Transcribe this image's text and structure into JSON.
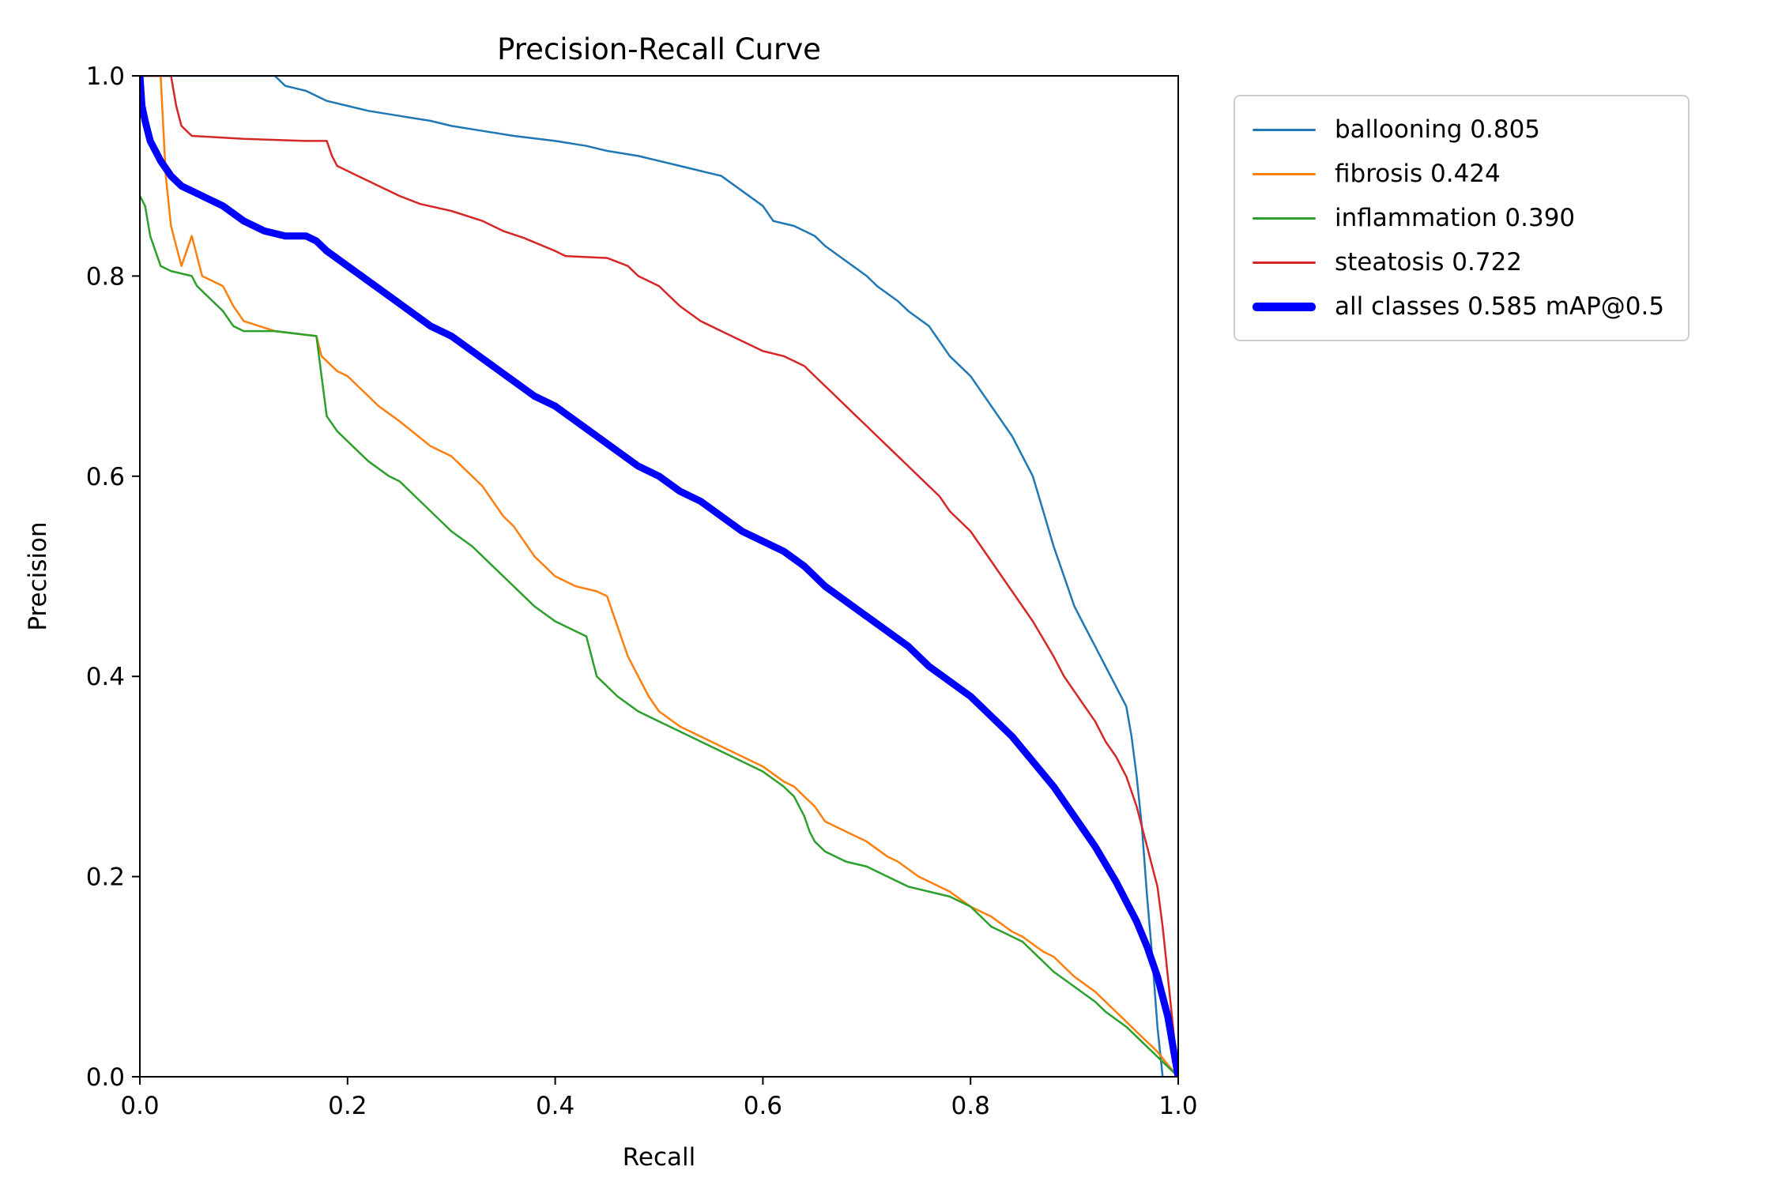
{
  "title": "Precision-Recall Curve",
  "axes": {
    "xlabel": "Recall",
    "ylabel": "Precision",
    "xticks": [
      "0.0",
      "0.2",
      "0.4",
      "0.6",
      "0.8",
      "1.0"
    ],
    "yticks": [
      "0.0",
      "0.2",
      "0.4",
      "0.6",
      "0.8",
      "1.0"
    ]
  },
  "legend": {
    "items": [
      {
        "label": "ballooning 0.805",
        "color": "#1f77b4",
        "thick": false
      },
      {
        "label": "fibrosis 0.424",
        "color": "#ff7f0e",
        "thick": false
      },
      {
        "label": "inflammation 0.390",
        "color": "#2ca02c",
        "thick": false
      },
      {
        "label": "steatosis 0.722",
        "color": "#d62728",
        "thick": false
      },
      {
        "label": "all classes 0.585 mAP@0.5",
        "color": "#0000ff",
        "thick": true
      }
    ]
  },
  "chart_data": {
    "type": "line",
    "title": "Precision-Recall Curve",
    "xlabel": "Recall",
    "ylabel": "Precision",
    "xlim": [
      0,
      1
    ],
    "ylim": [
      0,
      1
    ],
    "grid": false,
    "legend_position": "outside-upper-right",
    "series": [
      {
        "id": "ballooning",
        "name": "ballooning 0.805",
        "ap": 0.805,
        "color": "#1f77b4",
        "linewidth": 2.5,
        "x": [
          0,
          0.13,
          0.14,
          0.16,
          0.18,
          0.2,
          0.22,
          0.25,
          0.28,
          0.3,
          0.33,
          0.36,
          0.4,
          0.43,
          0.45,
          0.48,
          0.5,
          0.52,
          0.54,
          0.56,
          0.58,
          0.6,
          0.61,
          0.63,
          0.65,
          0.66,
          0.68,
          0.7,
          0.71,
          0.73,
          0.74,
          0.76,
          0.77,
          0.78,
          0.8,
          0.81,
          0.82,
          0.83,
          0.84,
          0.85,
          0.86,
          0.87,
          0.88,
          0.89,
          0.9,
          0.91,
          0.92,
          0.93,
          0.94,
          0.95,
          0.955,
          0.96,
          0.965,
          0.97,
          0.975,
          0.98,
          0.985
        ],
        "y": [
          1,
          1,
          0.99,
          0.985,
          0.975,
          0.97,
          0.965,
          0.96,
          0.955,
          0.95,
          0.945,
          0.94,
          0.935,
          0.93,
          0.925,
          0.92,
          0.915,
          0.91,
          0.905,
          0.9,
          0.885,
          0.87,
          0.855,
          0.85,
          0.84,
          0.83,
          0.815,
          0.8,
          0.79,
          0.775,
          0.765,
          0.75,
          0.735,
          0.72,
          0.7,
          0.685,
          0.67,
          0.655,
          0.64,
          0.62,
          0.6,
          0.565,
          0.53,
          0.5,
          0.47,
          0.45,
          0.43,
          0.41,
          0.39,
          0.37,
          0.34,
          0.3,
          0.25,
          0.18,
          0.12,
          0.05,
          0
        ]
      },
      {
        "id": "fibrosis",
        "name": "fibrosis 0.424",
        "ap": 0.424,
        "color": "#ff7f0e",
        "linewidth": 2.5,
        "x": [
          0,
          0.02,
          0.025,
          0.03,
          0.04,
          0.05,
          0.06,
          0.08,
          0.09,
          0.1,
          0.13,
          0.17,
          0.175,
          0.19,
          0.2,
          0.22,
          0.23,
          0.25,
          0.28,
          0.3,
          0.32,
          0.33,
          0.35,
          0.36,
          0.38,
          0.4,
          0.42,
          0.44,
          0.45,
          0.46,
          0.47,
          0.48,
          0.49,
          0.5,
          0.52,
          0.55,
          0.57,
          0.6,
          0.62,
          0.63,
          0.65,
          0.66,
          0.68,
          0.7,
          0.72,
          0.73,
          0.75,
          0.77,
          0.78,
          0.8,
          0.82,
          0.84,
          0.85,
          0.87,
          0.88,
          0.9,
          0.92,
          0.93,
          0.95,
          0.96,
          0.98,
          0.99,
          1.0
        ],
        "y": [
          1,
          1,
          0.9,
          0.85,
          0.81,
          0.84,
          0.8,
          0.79,
          0.77,
          0.755,
          0.745,
          0.74,
          0.72,
          0.705,
          0.7,
          0.68,
          0.67,
          0.655,
          0.63,
          0.62,
          0.6,
          0.59,
          0.56,
          0.55,
          0.52,
          0.5,
          0.49,
          0.485,
          0.48,
          0.45,
          0.42,
          0.4,
          0.38,
          0.365,
          0.35,
          0.335,
          0.325,
          0.31,
          0.295,
          0.29,
          0.27,
          0.255,
          0.245,
          0.235,
          0.22,
          0.215,
          0.2,
          0.19,
          0.185,
          0.17,
          0.16,
          0.145,
          0.14,
          0.125,
          0.12,
          0.1,
          0.085,
          0.075,
          0.055,
          0.045,
          0.025,
          0.012,
          0
        ]
      },
      {
        "id": "inflammation",
        "name": "inflammation 0.390",
        "ap": 0.39,
        "color": "#2ca02c",
        "linewidth": 2.5,
        "x": [
          0,
          0.005,
          0.01,
          0.02,
          0.03,
          0.05,
          0.055,
          0.07,
          0.08,
          0.09,
          0.1,
          0.13,
          0.17,
          0.175,
          0.18,
          0.19,
          0.2,
          0.22,
          0.24,
          0.25,
          0.27,
          0.28,
          0.3,
          0.32,
          0.33,
          0.35,
          0.37,
          0.38,
          0.4,
          0.42,
          0.43,
          0.435,
          0.44,
          0.46,
          0.48,
          0.5,
          0.52,
          0.55,
          0.58,
          0.6,
          0.62,
          0.63,
          0.64,
          0.645,
          0.65,
          0.66,
          0.68,
          0.7,
          0.72,
          0.74,
          0.76,
          0.78,
          0.8,
          0.82,
          0.84,
          0.85,
          0.87,
          0.88,
          0.9,
          0.92,
          0.93,
          0.95,
          0.96,
          0.98,
          0.99,
          1.0
        ],
        "y": [
          0.88,
          0.87,
          0.84,
          0.81,
          0.805,
          0.8,
          0.79,
          0.775,
          0.765,
          0.75,
          0.745,
          0.745,
          0.74,
          0.7,
          0.66,
          0.645,
          0.635,
          0.615,
          0.6,
          0.595,
          0.575,
          0.565,
          0.545,
          0.53,
          0.52,
          0.5,
          0.48,
          0.47,
          0.455,
          0.445,
          0.44,
          0.42,
          0.4,
          0.38,
          0.365,
          0.355,
          0.345,
          0.33,
          0.315,
          0.305,
          0.29,
          0.28,
          0.26,
          0.245,
          0.235,
          0.225,
          0.215,
          0.21,
          0.2,
          0.19,
          0.185,
          0.18,
          0.17,
          0.15,
          0.14,
          0.135,
          0.115,
          0.105,
          0.09,
          0.075,
          0.065,
          0.05,
          0.04,
          0.02,
          0.01,
          0
        ]
      },
      {
        "id": "steatosis",
        "name": "steatosis 0.722",
        "ap": 0.722,
        "color": "#d62728",
        "linewidth": 2.5,
        "x": [
          0,
          0.03,
          0.035,
          0.04,
          0.05,
          0.1,
          0.16,
          0.18,
          0.185,
          0.19,
          0.21,
          0.23,
          0.25,
          0.27,
          0.3,
          0.33,
          0.35,
          0.37,
          0.4,
          0.41,
          0.45,
          0.47,
          0.48,
          0.5,
          0.52,
          0.54,
          0.56,
          0.58,
          0.6,
          0.62,
          0.64,
          0.65,
          0.67,
          0.69,
          0.7,
          0.72,
          0.74,
          0.75,
          0.77,
          0.78,
          0.8,
          0.82,
          0.83,
          0.85,
          0.86,
          0.88,
          0.89,
          0.9,
          0.91,
          0.92,
          0.93,
          0.94,
          0.95,
          0.955,
          0.96,
          0.965,
          0.97,
          0.975,
          0.98,
          0.985,
          0.99,
          0.995,
          1.0
        ],
        "y": [
          1,
          1,
          0.97,
          0.95,
          0.94,
          0.937,
          0.935,
          0.935,
          0.92,
          0.91,
          0.9,
          0.89,
          0.88,
          0.872,
          0.865,
          0.855,
          0.845,
          0.838,
          0.825,
          0.82,
          0.818,
          0.81,
          0.8,
          0.79,
          0.77,
          0.755,
          0.745,
          0.735,
          0.725,
          0.72,
          0.71,
          0.7,
          0.68,
          0.66,
          0.65,
          0.63,
          0.61,
          0.6,
          0.58,
          0.565,
          0.545,
          0.515,
          0.5,
          0.47,
          0.455,
          0.42,
          0.4,
          0.385,
          0.37,
          0.355,
          0.335,
          0.32,
          0.3,
          0.285,
          0.27,
          0.25,
          0.23,
          0.21,
          0.19,
          0.15,
          0.1,
          0.05,
          0
        ]
      },
      {
        "id": "all-classes",
        "name": "all classes 0.585 mAP@0.5",
        "ap": 0.585,
        "color": "#0000ff",
        "linewidth": 9,
        "x": [
          0,
          0.002,
          0.005,
          0.01,
          0.02,
          0.03,
          0.04,
          0.06,
          0.08,
          0.1,
          0.12,
          0.14,
          0.16,
          0.17,
          0.18,
          0.2,
          0.22,
          0.24,
          0.26,
          0.28,
          0.3,
          0.32,
          0.34,
          0.36,
          0.38,
          0.4,
          0.42,
          0.44,
          0.46,
          0.48,
          0.5,
          0.52,
          0.54,
          0.56,
          0.58,
          0.6,
          0.62,
          0.64,
          0.66,
          0.68,
          0.7,
          0.72,
          0.74,
          0.76,
          0.78,
          0.8,
          0.82,
          0.84,
          0.86,
          0.88,
          0.9,
          0.92,
          0.94,
          0.96,
          0.97,
          0.98,
          0.985,
          0.99,
          0.995,
          1.0
        ],
        "y": [
          1,
          0.97,
          0.955,
          0.935,
          0.915,
          0.9,
          0.89,
          0.88,
          0.87,
          0.855,
          0.845,
          0.84,
          0.84,
          0.835,
          0.825,
          0.81,
          0.795,
          0.78,
          0.765,
          0.75,
          0.74,
          0.725,
          0.71,
          0.695,
          0.68,
          0.67,
          0.655,
          0.64,
          0.625,
          0.61,
          0.6,
          0.585,
          0.575,
          0.56,
          0.545,
          0.535,
          0.525,
          0.51,
          0.49,
          0.475,
          0.46,
          0.445,
          0.43,
          0.41,
          0.395,
          0.38,
          0.36,
          0.34,
          0.315,
          0.29,
          0.26,
          0.23,
          0.195,
          0.155,
          0.13,
          0.1,
          0.08,
          0.06,
          0.03,
          0
        ]
      }
    ]
  }
}
